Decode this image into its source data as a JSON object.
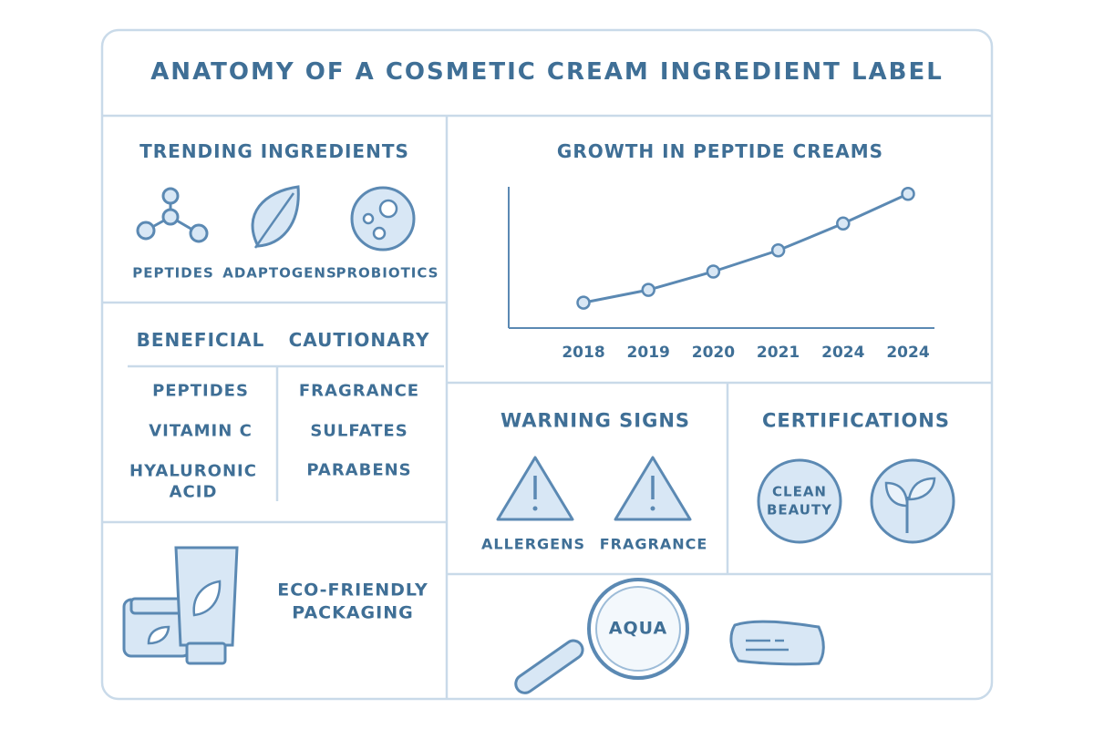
{
  "title": "ANATOMY OF A COSMETIC CREAM INGREDIENT LABEL",
  "trending": {
    "heading": "TRENDING INGREDIENTS",
    "items": [
      "PEPTIDES",
      "ADAPTOGENS",
      "PROBIOTICS"
    ]
  },
  "lists": {
    "beneficial": {
      "heading": "BENEFICIAL",
      "items": [
        "PEPTIDES",
        "VITAMIN C",
        "HYALURONIC ACID"
      ]
    },
    "cautionary": {
      "heading": "CAUTIONARY",
      "items": [
        "FRAGRANCE",
        "SULFATES",
        "PARABENS"
      ]
    }
  },
  "eco": "ECO-FRIENDLY PACKAGING",
  "chart_data": {
    "type": "line",
    "title": "GROWTH IN PEPTIDE CREAMS",
    "categories": [
      "2018",
      "2019",
      "2020",
      "2021",
      "2024",
      "2024"
    ],
    "values": [
      18,
      27,
      40,
      55,
      74,
      95
    ],
    "color": "#5b89b3",
    "ylim": [
      0,
      100
    ]
  },
  "warnings": {
    "heading": "WARNING SIGNS",
    "items": [
      "ALLERGENS",
      "FRAGRANCE"
    ]
  },
  "certifications": {
    "heading": "CERTIFICATIONS",
    "badge": "CLEAN BEAUTY"
  },
  "magnifier": "AQUA"
}
